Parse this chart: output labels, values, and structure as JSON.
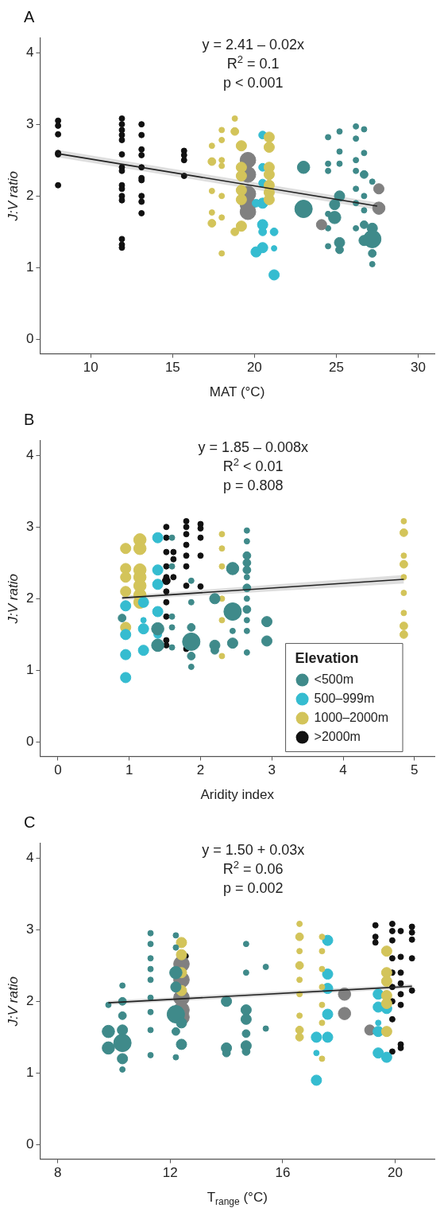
{
  "chart_data": [
    {
      "type": "bubble",
      "title": "A",
      "xlabel": "MAT (°C)",
      "ylabel": "J:V ratio",
      "annotations": [
        "y = 2.41 – 0.02x",
        "R$^{2}$ = 0.1",
        "p < 0.001"
      ],
      "xlim": [
        6.9,
        31
      ],
      "xticks": [
        10,
        15,
        20,
        25,
        30
      ],
      "ylim": [
        -0.2,
        4.2
      ],
      "yticks": [
        0,
        1,
        2,
        3,
        4
      ],
      "grid": false,
      "marker": "circle",
      "series": [
        {
          "color": "#111111",
          "x": [
            8,
            8,
            8,
            8,
            8,
            8,
            11.9,
            11.9,
            11.9,
            11.9,
            11.9,
            11.9,
            11.9,
            11.9,
            11.9,
            11.9,
            11.9,
            11.9,
            11.9,
            11.9,
            11.9,
            13.1,
            13.1,
            13.1,
            13.1,
            13.1,
            13.1,
            13.1,
            13.1,
            13.1,
            13.1,
            15.7,
            15.7,
            15.7,
            15.7
          ],
          "values": [
            3.05,
            2.98,
            2.86,
            2.6,
            2.58,
            2.15,
            3.08,
            3.0,
            2.92,
            2.85,
            2.78,
            2.58,
            2.4,
            2.35,
            2.15,
            2.1,
            2.0,
            1.94,
            1.4,
            1.32,
            1.28,
            3.0,
            2.85,
            2.65,
            2.57,
            2.4,
            2.25,
            2.22,
            2.0,
            1.92,
            1.76,
            2.63,
            2.57,
            2.5,
            2.28
          ],
          "sizes": [
            0.1,
            0.1,
            0.1,
            0.1,
            0.1,
            0.1,
            0.1,
            0.1,
            0.1,
            0.1,
            0.1,
            0.1,
            0.1,
            0.1,
            0.1,
            0.1,
            0.1,
            0.1,
            0.1,
            0.1,
            0.1,
            0.1,
            0.1,
            0.1,
            0.1,
            0.1,
            0.1,
            0.1,
            0.1,
            0.1,
            0.1,
            0.1,
            0.1,
            0.1,
            0.1
          ]
        },
        {
          "color": "#d3c45a",
          "x": [
            17.4,
            17.4,
            17.4,
            17.4,
            17.4,
            18,
            18,
            18,
            18,
            18,
            18,
            18,
            18.8,
            18.8,
            18.8,
            19.2,
            19.2,
            19.2,
            19.2,
            19.2,
            19.2,
            20.9,
            20.9,
            20.9,
            20.9,
            20.9,
            20.9,
            20.9
          ],
          "values": [
            2.7,
            2.48,
            2.07,
            1.77,
            1.62,
            2.92,
            2.78,
            2.5,
            2.42,
            2.0,
            1.7,
            1.2,
            3.08,
            2.9,
            1.5,
            2.7,
            2.4,
            2.28,
            2.08,
            1.95,
            1.58,
            2.82,
            2.68,
            2.4,
            2.3,
            2.15,
            2.05,
            1.95
          ],
          "sizes": [
            0.1,
            0.2,
            0.1,
            0.1,
            0.2,
            0.1,
            0.1,
            0.1,
            0.1,
            0.1,
            0.1,
            0.1,
            0.1,
            0.2,
            0.2,
            0.35,
            0.35,
            0.35,
            0.35,
            0.35,
            0.35,
            0.35,
            0.35,
            0.35,
            0.35,
            0.35,
            0.35,
            0.35
          ]
        },
        {
          "color": "#35bcd0",
          "x": [
            20.5,
            20.5,
            20.5,
            20.5,
            20.5,
            20.5,
            20.5,
            20.1,
            20.1,
            21.2,
            21.2,
            21.2
          ],
          "values": [
            2.85,
            2.4,
            2.18,
            1.9,
            1.6,
            1.5,
            1.28,
            1.22,
            1.9,
            1.5,
            0.9,
            1.27
          ],
          "sizes": [
            0.2,
            0.2,
            0.2,
            0.35,
            0.35,
            0.2,
            0.35,
            0.35,
            0.2,
            0.2,
            0.35,
            0.1
          ]
        },
        {
          "color": "#808080",
          "x": [
            19.6,
            19.6,
            19.6,
            19.6,
            19.6,
            24.1,
            27.6,
            27.6
          ],
          "values": [
            2.5,
            2.3,
            2.03,
            1.88,
            1.78,
            1.6,
            2.1,
            1.83
          ],
          "sizes": [
            0.8,
            0.8,
            0.8,
            0.8,
            0.8,
            0.35,
            0.35,
            0.5
          ]
        },
        {
          "color": "#3f8a8a",
          "x": [
            23,
            23,
            24.5,
            24.5,
            24.5,
            24.5,
            24.5,
            24.5,
            25.2,
            25.2,
            25.2,
            25.2,
            25.2,
            25.2,
            24.9,
            24.9,
            26.2,
            26.2,
            26.2,
            26.2,
            26.2,
            26.2,
            26.2,
            26.7,
            26.7,
            26.7,
            26.7,
            26.7,
            26.7,
            26.7,
            27.2,
            27.2,
            27.2,
            27.2,
            27.2
          ],
          "values": [
            2.4,
            1.82,
            2.82,
            2.45,
            2.35,
            1.75,
            1.55,
            1.3,
            2.9,
            2.62,
            2.45,
            2.0,
            1.35,
            1.25,
            1.88,
            1.7,
            2.97,
            2.8,
            2.5,
            2.35,
            2.1,
            1.9,
            1.55,
            2.93,
            2.6,
            2.3,
            2.0,
            1.8,
            1.6,
            1.38,
            2.2,
            1.55,
            1.4,
            1.2,
            1.05
          ],
          "sizes": [
            0.5,
            1,
            0.1,
            0.1,
            0.1,
            0.1,
            0.1,
            0.1,
            0.1,
            0.1,
            0.1,
            0.35,
            0.35,
            0.2,
            0.35,
            0.5,
            0.1,
            0.1,
            0.1,
            0.1,
            0.1,
            0.1,
            0.1,
            0.1,
            0.1,
            0.2,
            0.1,
            0.1,
            0.2,
            0.35,
            0.1,
            0.35,
            1,
            0.2,
            0.1
          ]
        },
        {
          "type": "line",
          "marker": "none",
          "color": "#222222",
          "x": [
            8,
            27.5
          ],
          "values": [
            2.59,
            1.86
          ],
          "lower": [
            2.54,
            1.81
          ],
          "upper": [
            2.64,
            1.91
          ]
        }
      ]
    },
    {
      "type": "bubble",
      "title": "B",
      "xlabel": "Aridity index",
      "ylabel": "J:V ratio",
      "annotations": [
        "y = 1.85 – 0.008x",
        "R$^{2}$ < 0.01",
        "p = 0.808"
      ],
      "xlim": [
        -0.25,
        5.28
      ],
      "xticks": [
        0,
        1,
        2,
        3,
        4,
        5
      ],
      "ylim": [
        -0.2,
        4.2
      ],
      "yticks": [
        0,
        1,
        2,
        3,
        4
      ],
      "grid": false,
      "marker": "circle",
      "legend": "bottom right",
      "legend_title": "Elevation",
      "series": [
        {
          "name": "<500m",
          "color": "#3f8a8a",
          "x": [
            0.9,
            1.4,
            1.4,
            1.6,
            1.6,
            1.6,
            1.6,
            1.6,
            1.87,
            1.87,
            1.87,
            1.87,
            1.87,
            1.87,
            2.2,
            2.2,
            2.2,
            2.45,
            2.45,
            2.45,
            2.45,
            2.65,
            2.65,
            2.65,
            2.65,
            2.65,
            2.65,
            2.65,
            2.65,
            2.65,
            2.65,
            2.65,
            2.65,
            2.93,
            2.93
          ],
          "values": [
            1.73,
            1.58,
            1.35,
            2.85,
            2.45,
            1.75,
            1.6,
            1.32,
            2.25,
            1.95,
            1.6,
            1.4,
            1.2,
            1.05,
            2.0,
            1.35,
            1.28,
            2.42,
            1.82,
            1.55,
            1.38,
            2.95,
            2.8,
            2.6,
            2.5,
            2.4,
            2.3,
            2.15,
            2.0,
            1.85,
            1.7,
            1.55,
            1.25,
            1.68,
            1.41
          ],
          "sizes": [
            0.2,
            0.5,
            0.5,
            0.1,
            0.1,
            0.1,
            0.1,
            0.1,
            0.1,
            0.1,
            0.2,
            1,
            0.2,
            0.1,
            0.35,
            0.35,
            0.2,
            0.5,
            1,
            0.1,
            0.35,
            0.1,
            0.1,
            0.2,
            0.2,
            0.2,
            0.1,
            0.2,
            0.1,
            0.2,
            0.1,
            0.1,
            0.1,
            0.35,
            0.35
          ]
        },
        {
          "name": "500–999m",
          "color": "#35bcd0",
          "x": [
            0.95,
            0.95,
            0.95,
            0.95,
            1.2,
            1.2,
            1.2,
            1.2,
            1.4,
            1.4,
            1.4,
            1.4,
            1.4
          ],
          "values": [
            1.9,
            1.5,
            1.22,
            0.9,
            1.95,
            1.58,
            1.28,
            1.7,
            2.85,
            2.4,
            2.2,
            1.82,
            1.5
          ],
          "sizes": [
            0.35,
            0.35,
            0.35,
            0.35,
            0.35,
            0.35,
            0.35,
            0.1,
            0.35,
            0.35,
            0.35,
            0.35,
            0.2
          ]
        },
        {
          "name": "1000–2000m",
          "color": "#d3c45a",
          "x": [
            0.95,
            0.95,
            0.95,
            0.95,
            0.95,
            1.15,
            1.15,
            1.15,
            1.15,
            1.15,
            1.15,
            1.15,
            2.3,
            2.3,
            2.3,
            2.3,
            2.3,
            2.3,
            4.85,
            4.85,
            4.85,
            4.85,
            4.85,
            4.85,
            4.85,
            4.85,
            4.85
          ],
          "values": [
            2.7,
            2.42,
            2.3,
            2.1,
            1.6,
            2.82,
            2.7,
            2.4,
            2.3,
            2.18,
            2.05,
            1.95,
            2.9,
            2.7,
            2.45,
            2.0,
            1.7,
            1.2,
            3.08,
            2.92,
            2.6,
            2.48,
            2.3,
            2.08,
            1.8,
            1.62,
            1.5
          ],
          "sizes": [
            0.35,
            0.35,
            0.35,
            0.35,
            0.35,
            0.5,
            0.5,
            0.5,
            0.5,
            0.5,
            0.5,
            0.5,
            0.1,
            0.1,
            0.1,
            0.1,
            0.1,
            0.1,
            0.1,
            0.2,
            0.1,
            0.2,
            0.1,
            0.1,
            0.1,
            0.2,
            0.2
          ]
        },
        {
          "name": ">2000m",
          "color": "#111111",
          "x": [
            1.52,
            1.52,
            1.52,
            1.52,
            1.52,
            1.52,
            1.52,
            1.52,
            1.52,
            1.52,
            1.52,
            1.62,
            1.62,
            1.62,
            1.8,
            1.8,
            1.8,
            1.8,
            1.8,
            1.8,
            1.8,
            1.8,
            2.0,
            2.0,
            2.0,
            2.0,
            2.0
          ],
          "values": [
            3.0,
            2.85,
            2.65,
            2.45,
            2.3,
            2.25,
            2.1,
            1.95,
            1.75,
            1.42,
            1.35,
            2.65,
            2.55,
            2.3,
            3.08,
            3.0,
            2.9,
            2.75,
            2.6,
            2.45,
            2.18,
            1.3,
            3.04,
            2.98,
            2.85,
            2.6,
            2.17
          ],
          "sizes": [
            0.1,
            0.1,
            0.1,
            0.1,
            0.1,
            0.2,
            0.1,
            0.1,
            0.1,
            0.1,
            0.1,
            0.1,
            0.1,
            0.1,
            0.1,
            0.1,
            0.1,
            0.1,
            0.1,
            0.1,
            0.1,
            0.1,
            0.1,
            0.1,
            0.1,
            0.1,
            0.1
          ]
        },
        {
          "type": "line",
          "marker": "none",
          "color": "#222222",
          "x": [
            0.9,
            4.85
          ],
          "values": [
            2.01,
            2.27
          ],
          "lower": [
            1.98,
            2.21
          ],
          "upper": [
            2.04,
            2.33
          ]
        }
      ]
    },
    {
      "type": "bubble",
      "title": "C",
      "xlabel": "T$_{range}$ (°C)",
      "ylabel": "J:V ratio",
      "annotations": [
        "y = 1.50 + 0.03x",
        "R$^{2}$ = 0.06",
        "p = 0.002"
      ],
      "xlim": [
        7.37,
        21.4
      ],
      "xticks": [
        8,
        12,
        16,
        20
      ],
      "ylim": [
        -0.2,
        4.2
      ],
      "yticks": [
        0,
        1,
        2,
        3,
        4
      ],
      "grid": false,
      "marker": "circle",
      "series": [
        {
          "color": "#3f8a8a",
          "x": [
            9.8,
            9.8,
            9.8,
            10.3,
            10.3,
            10.3,
            10.3,
            10.3,
            10.3,
            10.3,
            11.3,
            11.3,
            11.3,
            11.3,
            11.3,
            11.3,
            11.3,
            11.3,
            11.3,
            12.2,
            12.2,
            12.2,
            12.2,
            12.2,
            12.2,
            12.2,
            12.4,
            12.4,
            14,
            14,
            14,
            14.7,
            14.7,
            14.7,
            14.7,
            14.7,
            14.7,
            14.7,
            15.4,
            15.4
          ],
          "values": [
            1.95,
            1.58,
            1.35,
            2.22,
            2.0,
            1.8,
            1.6,
            1.42,
            1.2,
            1.05,
            2.95,
            2.8,
            2.6,
            2.45,
            2.3,
            2.05,
            1.85,
            1.6,
            1.25,
            2.92,
            2.75,
            2.4,
            2.2,
            1.82,
            1.58,
            1.22,
            1.7,
            1.4,
            2.0,
            1.35,
            1.28,
            2.8,
            2.4,
            1.88,
            1.75,
            1.55,
            1.38,
            1.3,
            2.48,
            1.62
          ],
          "sizes": [
            0.1,
            0.5,
            0.5,
            0.1,
            0.2,
            0.2,
            0.35,
            1,
            0.35,
            0.1,
            0.1,
            0.1,
            0.1,
            0.1,
            0.1,
            0.1,
            0.1,
            0.1,
            0.1,
            0.1,
            0.1,
            0.5,
            0.35,
            1,
            0.2,
            0.1,
            0.35,
            0.35,
            0.35,
            0.35,
            0.2,
            0.1,
            0.1,
            0.35,
            0.35,
            0.2,
            0.35,
            0.2,
            0.1,
            0.1
          ]
        },
        {
          "color": "#d3c45a",
          "x": [
            12.4,
            12.4,
            12.4,
            12.4,
            16.6,
            16.6,
            16.6,
            16.6,
            16.6,
            16.6,
            16.6,
            16.6,
            16.6,
            17.4,
            17.4,
            17.4,
            17.4,
            17.4,
            17.4,
            17.4,
            19.7,
            19.7,
            19.7,
            19.7,
            19.7,
            19.7
          ],
          "values": [
            2.82,
            2.65,
            2.4,
            2.15,
            3.08,
            2.9,
            2.7,
            2.5,
            2.3,
            2.1,
            1.8,
            1.6,
            1.5,
            2.9,
            2.7,
            2.45,
            2.2,
            1.95,
            1.7,
            1.2,
            2.7,
            2.4,
            2.28,
            2.08,
            1.97,
            1.58
          ],
          "sizes": [
            0.35,
            0.35,
            0.35,
            0.35,
            0.1,
            0.2,
            0.1,
            0.2,
            0.1,
            0.1,
            0.1,
            0.2,
            0.2,
            0.1,
            0.1,
            0.1,
            0.1,
            0.1,
            0.1,
            0.1,
            0.35,
            0.35,
            0.35,
            0.35,
            0.35,
            0.35
          ]
        },
        {
          "color": "#35bcd0",
          "x": [
            17.2,
            17.2,
            17.2,
            17.6,
            17.6,
            17.6,
            17.6,
            17.6,
            19.4,
            19.4,
            19.4,
            19.4,
            19.4,
            19.7,
            19.7
          ],
          "values": [
            1.5,
            1.28,
            0.9,
            2.85,
            2.38,
            2.18,
            1.82,
            1.5,
            2.1,
            1.92,
            1.7,
            1.58,
            1.28,
            1.9,
            1.22
          ],
          "sizes": [
            0.35,
            0.1,
            0.35,
            0.35,
            0.35,
            0.35,
            0.35,
            0.35,
            0.35,
            0.35,
            0.1,
            0.35,
            0.35,
            0.35,
            0.35
          ]
        },
        {
          "color": "#808080",
          "x": [
            12.4,
            12.4,
            12.4,
            12.4,
            12.4,
            18.2,
            18.2,
            19.1
          ],
          "values": [
            2.52,
            2.3,
            2.05,
            1.88,
            1.78,
            2.1,
            1.83,
            1.6
          ],
          "sizes": [
            0.8,
            0.8,
            0.8,
            0.8,
            0.8,
            0.5,
            0.5,
            0.35
          ]
        },
        {
          "color": "#111111",
          "x": [
            12.55,
            19.3,
            19.3,
            19.3,
            19.9,
            19.9,
            19.9,
            19.9,
            19.9,
            19.9,
            19.9,
            19.9,
            19.9,
            20.2,
            20.2,
            20.2,
            20.2,
            20.2,
            20.2,
            20.2,
            20.2,
            20.6,
            20.6,
            20.6,
            20.6,
            20.6
          ],
          "values": [
            2.63,
            3.06,
            2.9,
            2.82,
            3.08,
            2.98,
            2.85,
            2.6,
            2.4,
            2.2,
            2.0,
            1.75,
            1.3,
            2.98,
            2.62,
            2.4,
            2.25,
            2.1,
            1.95,
            1.4,
            1.35,
            3.04,
            2.96,
            2.86,
            2.6,
            2.15
          ],
          "sizes": [
            0.1,
            0.1,
            0.1,
            0.1,
            0.1,
            0.1,
            0.1,
            0.1,
            0.1,
            0.1,
            0.1,
            0.1,
            0.1,
            0.1,
            0.1,
            0.1,
            0.1,
            0.1,
            0.1,
            0.1,
            0.1,
            0.1,
            0.1,
            0.1,
            0.1,
            0.1
          ]
        },
        {
          "type": "line",
          "marker": "none",
          "color": "#222222",
          "x": [
            9.8,
            20.6
          ],
          "values": [
            1.98,
            2.21
          ],
          "lower": [
            1.95,
            2.18
          ],
          "upper": [
            2.01,
            2.24
          ]
        }
      ]
    }
  ]
}
